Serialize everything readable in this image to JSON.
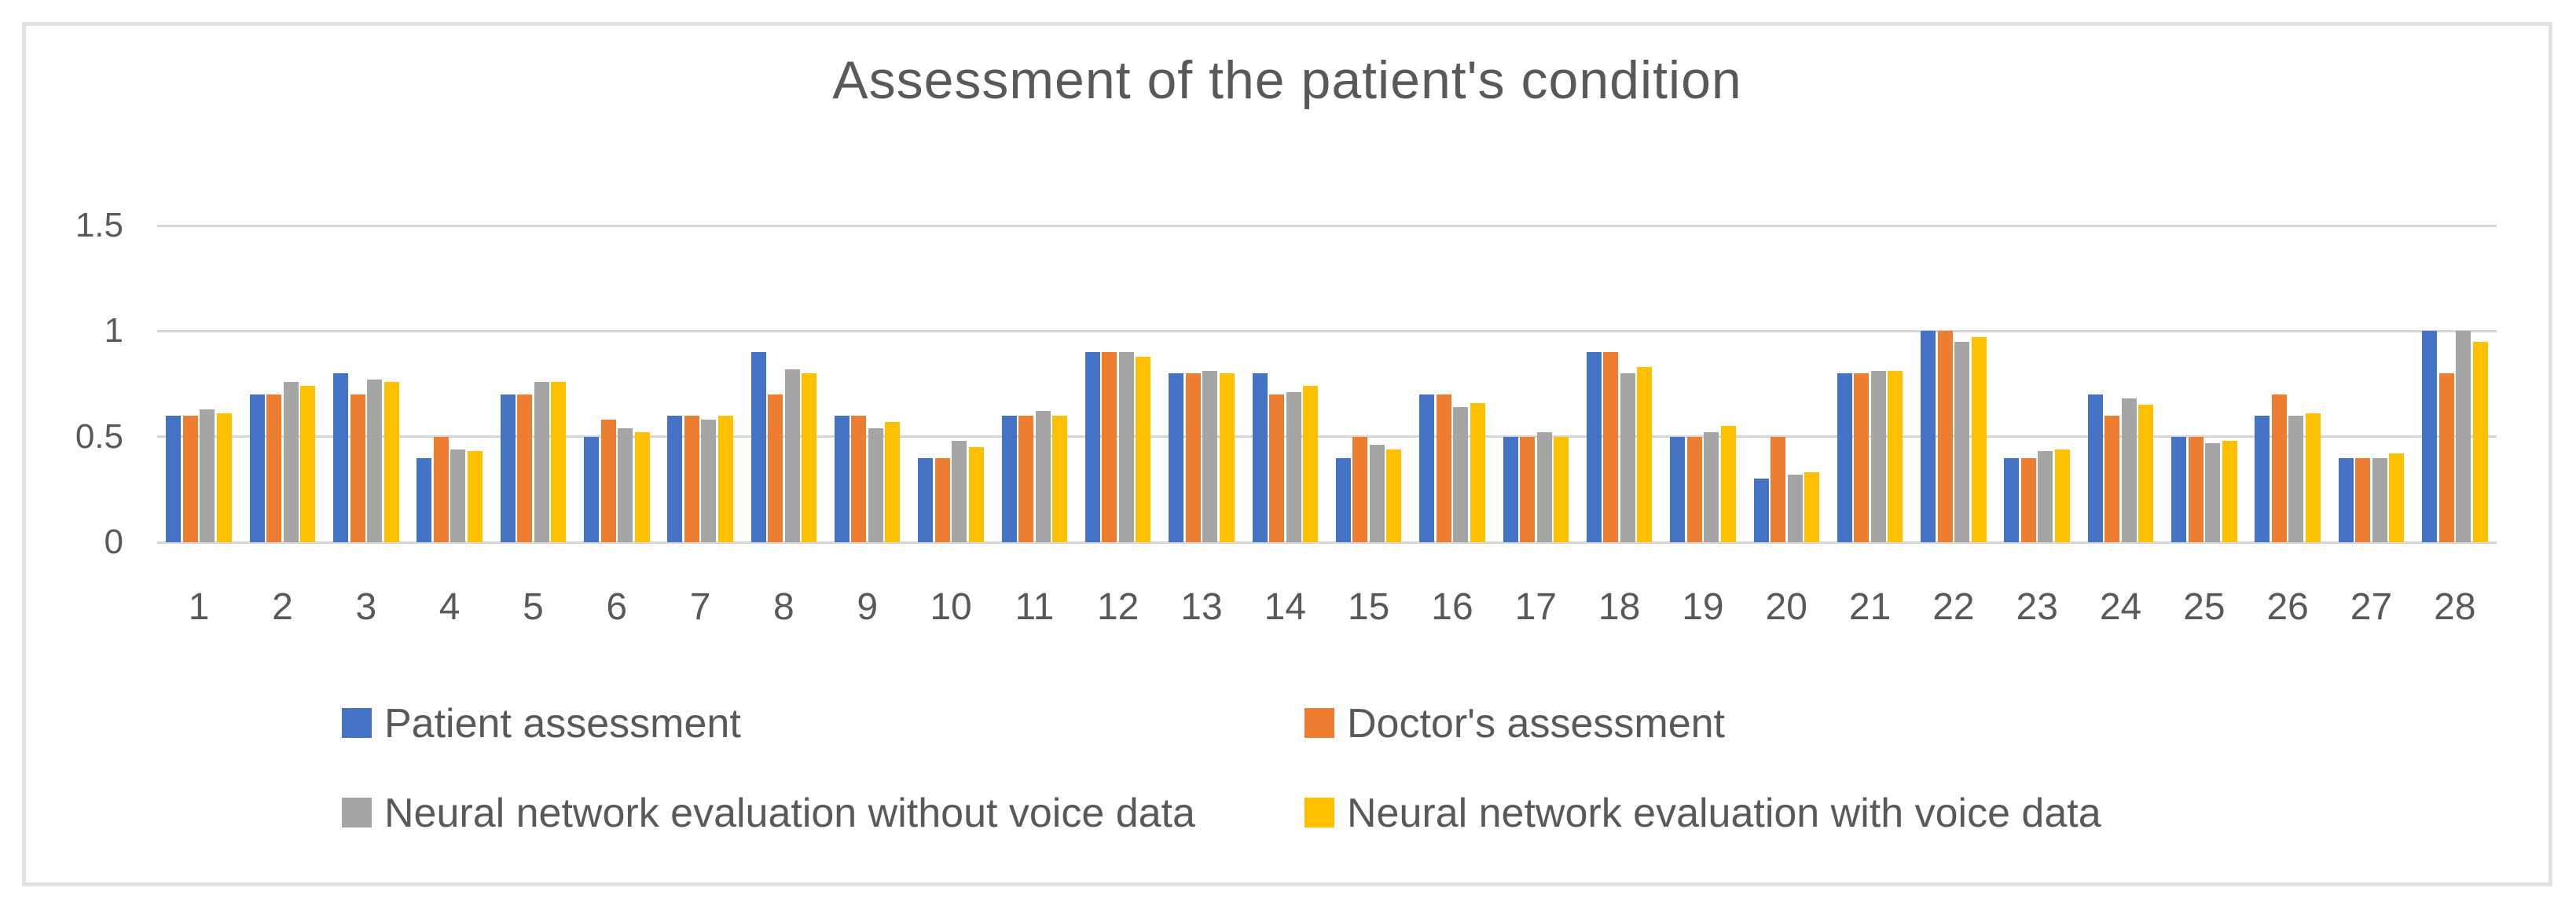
{
  "chart_data": {
    "type": "bar",
    "title": "Assessment of the patient's condition",
    "categories": [
      "1",
      "2",
      "3",
      "4",
      "5",
      "6",
      "7",
      "8",
      "9",
      "10",
      "11",
      "12",
      "13",
      "14",
      "15",
      "16",
      "17",
      "18",
      "19",
      "20",
      "21",
      "22",
      "23",
      "24",
      "25",
      "26",
      "27",
      "28"
    ],
    "series": [
      {
        "name": "Patient assessment",
        "color": "#4472C4",
        "values": [
          0.6,
          0.7,
          0.8,
          0.4,
          0.7,
          0.5,
          0.6,
          0.9,
          0.6,
          0.4,
          0.6,
          0.9,
          0.8,
          0.8,
          0.4,
          0.7,
          0.5,
          0.9,
          0.5,
          0.3,
          0.8,
          1.0,
          0.4,
          0.7,
          0.5,
          0.6,
          0.4,
          1.0
        ]
      },
      {
        "name": "Doctor's assessment",
        "color": "#ED7D31",
        "values": [
          0.6,
          0.7,
          0.7,
          0.5,
          0.7,
          0.58,
          0.6,
          0.7,
          0.6,
          0.4,
          0.6,
          0.9,
          0.8,
          0.7,
          0.5,
          0.7,
          0.5,
          0.9,
          0.5,
          0.5,
          0.8,
          1.0,
          0.4,
          0.6,
          0.5,
          0.7,
          0.4,
          0.8
        ]
      },
      {
        "name": "Neural network evaluation without voice data",
        "color": "#A5A5A5",
        "values": [
          0.63,
          0.76,
          0.77,
          0.44,
          0.76,
          0.54,
          0.58,
          0.82,
          0.54,
          0.48,
          0.62,
          0.9,
          0.81,
          0.71,
          0.46,
          0.64,
          0.52,
          0.8,
          0.52,
          0.32,
          0.81,
          0.95,
          0.43,
          0.68,
          0.47,
          0.6,
          0.4,
          1.0
        ]
      },
      {
        "name": "Neural network evaluation with voice data",
        "color": "#FFC000",
        "values": [
          0.61,
          0.74,
          0.76,
          0.43,
          0.76,
          0.52,
          0.6,
          0.8,
          0.57,
          0.45,
          0.6,
          0.88,
          0.8,
          0.74,
          0.44,
          0.66,
          0.5,
          0.83,
          0.55,
          0.33,
          0.81,
          0.97,
          0.44,
          0.65,
          0.48,
          0.61,
          0.42,
          0.95
        ]
      }
    ],
    "ylim": [
      0,
      1.5
    ],
    "y_ticks": [
      "0",
      "0.5",
      "1",
      "1.5"
    ],
    "y_tick_values": [
      0,
      0.5,
      1,
      1.5
    ],
    "grid": true,
    "legend_position": "bottom-left-two-rows"
  },
  "colors": {
    "background": "#FFFFFF",
    "frame_border": "#E2E2E2",
    "gridline": "#D6D6D6",
    "title_text": "#595959",
    "axis_text": "#595959",
    "legend_text": "#595959"
  }
}
